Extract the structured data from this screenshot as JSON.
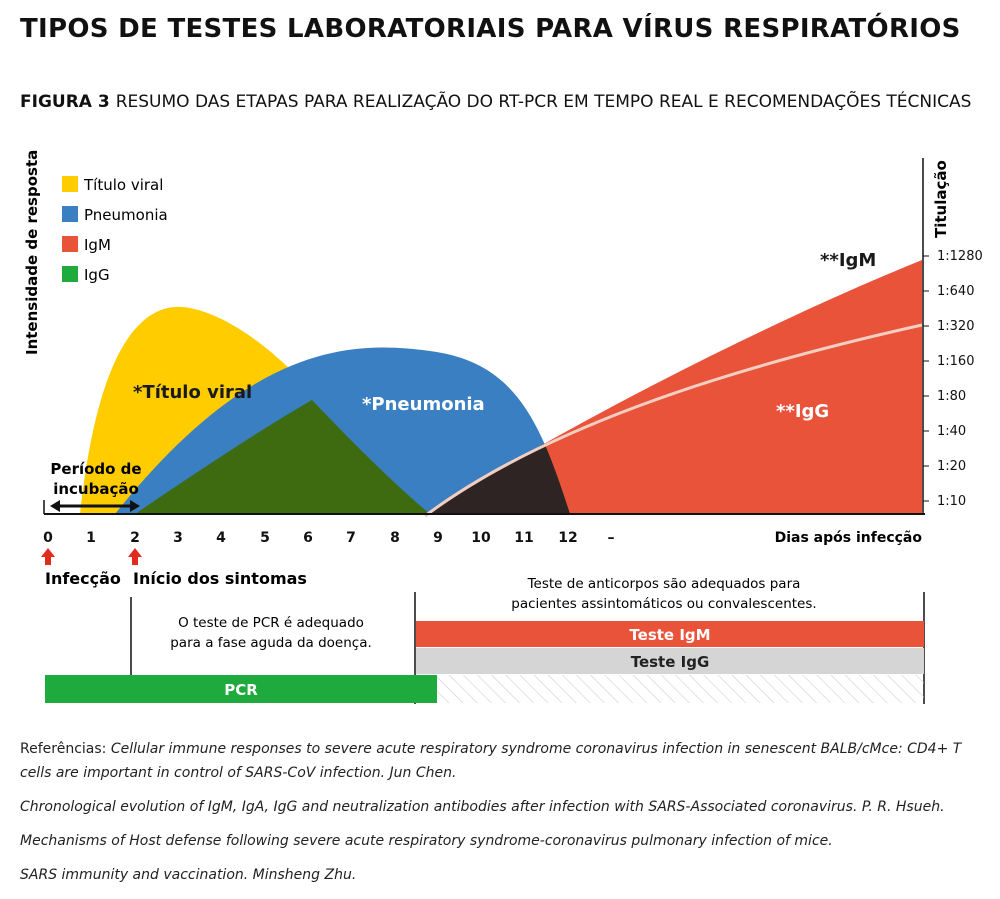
{
  "title": "TIPOS DE TESTES LABORATORIAIS PARA VÍRUS RESPIRATÓRIOS",
  "figure": {
    "number": "FIGURA 3",
    "caption": "RESUMO DAS ETAPAS PARA REALIZAÇÃO DO RT-PCR EM TEMPO REAL E RECOMENDAÇÕES TÉCNICAS"
  },
  "axes": {
    "y_left_label": "Intensidade de resposta",
    "y_right_label": "Titulação",
    "y_right_ticks": [
      "1:1280",
      "1:640",
      "1:320",
      "1:160",
      "1:80",
      "1:40",
      "1:20",
      "1:10"
    ],
    "x_ticks": [
      "0",
      "1",
      "2",
      "3",
      "4",
      "5",
      "6",
      "7",
      "8",
      "9",
      "10",
      "11",
      "12",
      "–"
    ],
    "x_label": "Dias após infecção"
  },
  "legend": [
    {
      "label": "Título viral",
      "color": "#FFCC00"
    },
    {
      "label": "Pneumonia",
      "color": "#3A7FC1"
    },
    {
      "label": "IgM",
      "color": "#E8533A"
    },
    {
      "label": "IgG",
      "color": "#1EAA3C"
    }
  ],
  "curve_labels": {
    "viral": "*Título viral",
    "pneumonia": "*Pneumonia",
    "igm": "**IgM",
    "igg": "**IgG"
  },
  "incubation": {
    "line1": "Período de",
    "line2": "incubação"
  },
  "markers": {
    "infection": "Infecção",
    "symptoms": "Início dos sintomas"
  },
  "tests": {
    "antibody_note_line1": "Teste de anticorpos são adequados para",
    "antibody_note_line2": "pacientes assintomáticos ou convalescentes.",
    "pcr_note_line1": "O teste de PCR é adequado",
    "pcr_note_line2": "para a fase aguda da doença.",
    "igm_bar": "Teste IgM",
    "igg_bar": "Teste IgG",
    "pcr_bar": "PCR"
  },
  "colors": {
    "viral": "#FFCC00",
    "pneumonia": "#3A7FC1",
    "igm": "#E8533A",
    "igg_overlap_green": "#3E6B10",
    "dark_overlap": "#2E2424",
    "pcr_green": "#1EAA3C",
    "igg_bar_gray": "#D5D5D5",
    "arrow_red": "#E02B1E"
  },
  "references": {
    "prefix": "Referências:",
    "items": [
      "Cellular immune responses to severe acute respiratory syndrome coronavirus infection in senescent BALB/cMce: CD4+ T cells are important in control of SARS-CoV infection. Jun Chen.",
      "Chronological evolution of IgM, IgA, IgG and neutralization antibodies after infection with SARS-Associated coronavirus. P. R. Hsueh.",
      "Mechanisms of Host defense following severe acute respiratory syndrome-coronavirus pulmonary infection of mice.",
      "SARS immunity and vaccination. Minsheng Zhu."
    ]
  }
}
